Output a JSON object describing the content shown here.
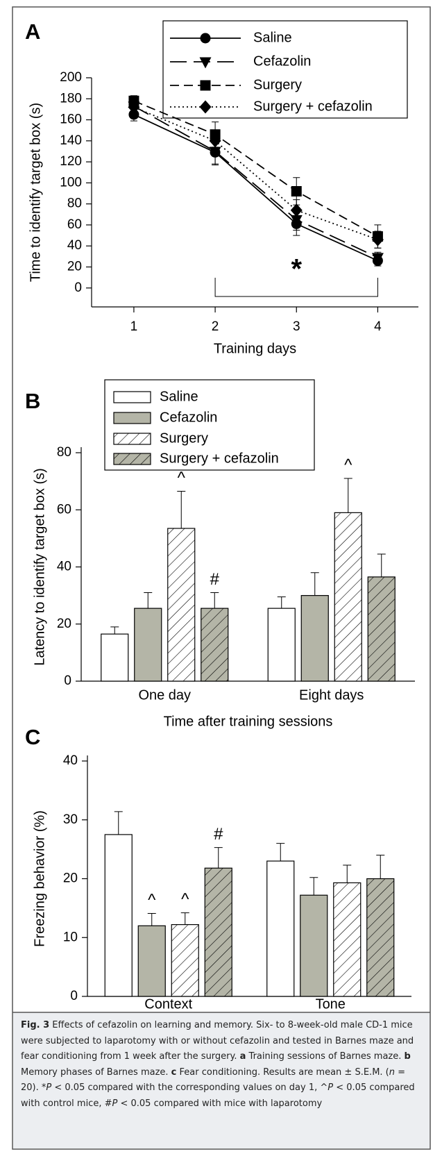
{
  "chart_data": [
    {
      "type": "line",
      "panel": "A",
      "y_label": "Time to identify target box (s)",
      "x_label": "Training days",
      "x": [
        1,
        2,
        3,
        4
      ],
      "xlim": [
        0.48,
        4.5
      ],
      "xticks": [
        1,
        2,
        3,
        4
      ],
      "ylim": [
        -18,
        200
      ],
      "yticks": [
        0,
        20,
        40,
        60,
        80,
        100,
        120,
        140,
        160,
        180,
        200
      ],
      "annotation": "*",
      "series": [
        {
          "name": "Saline",
          "color": "#000000",
          "marker": "circle",
          "dash": "solid",
          "values": [
            165,
            129,
            61,
            26
          ],
          "errors": [
            6,
            12,
            11,
            5
          ]
        },
        {
          "name": "Cefazolin",
          "color": "#000000",
          "marker": "triangle-down",
          "dash": "longdash",
          "values": [
            173,
            130,
            65,
            29
          ],
          "errors": [
            5,
            12,
            10,
            5
          ]
        },
        {
          "name": "Surgery",
          "color": "#000000",
          "marker": "square",
          "dash": "dash",
          "values": [
            178,
            146,
            92,
            49
          ],
          "errors": [
            5,
            12,
            13,
            11
          ]
        },
        {
          "name": "Surgery + cefazolin",
          "color": "#000000",
          "marker": "diamond",
          "dash": "dot",
          "values": [
            172,
            140,
            74,
            46
          ],
          "errors": [
            5,
            10,
            10,
            8
          ]
        }
      ]
    },
    {
      "type": "bar",
      "panel": "B",
      "y_label": "Latency to identify target box (s)",
      "x_label": "Time after training sessions",
      "categories": [
        "One day",
        "Eight days"
      ],
      "ylim": [
        0,
        80
      ],
      "yticks": [
        0,
        20,
        40,
        60,
        80
      ],
      "series": [
        {
          "name": "Saline",
          "color": "#ffffff",
          "hatch": false,
          "values": [
            16.5,
            25.5
          ],
          "errors": [
            2.5,
            4
          ],
          "annotations": [
            null,
            null
          ]
        },
        {
          "name": "Cefazolin",
          "color": "#b4b5a7",
          "hatch": false,
          "values": [
            25.5,
            30
          ],
          "errors": [
            5.5,
            8
          ],
          "annotations": [
            null,
            null
          ]
        },
        {
          "name": "Surgery",
          "color": "#ffffff",
          "hatch": true,
          "values": [
            53.5,
            59
          ],
          "errors": [
            13,
            12
          ],
          "annotations": [
            "^",
            "^"
          ]
        },
        {
          "name": "Surgery + cefazolin",
          "color": "#b4b5a7",
          "hatch": true,
          "values": [
            25.5,
            36.5
          ],
          "errors": [
            5.5,
            8
          ],
          "annotations": [
            "#",
            null
          ]
        }
      ]
    },
    {
      "type": "bar",
      "panel": "C",
      "y_label": "Freezing behavior (%)",
      "categories": [
        "Context",
        "Tone"
      ],
      "ylim": [
        0,
        40
      ],
      "yticks": [
        0,
        10,
        20,
        30,
        40
      ],
      "series": [
        {
          "color": "#ffffff",
          "hatch": false,
          "values": [
            27.5,
            23
          ],
          "errors": [
            3.9,
            3
          ],
          "annotations": [
            null,
            null
          ]
        },
        {
          "color": "#b4b5a7",
          "hatch": false,
          "values": [
            12,
            17.2
          ],
          "errors": [
            2.1,
            3
          ],
          "annotations": [
            "^",
            null
          ]
        },
        {
          "color": "#ffffff",
          "hatch": true,
          "values": [
            12.2,
            19.3
          ],
          "errors": [
            2,
            3
          ],
          "annotations": [
            "^",
            null
          ]
        },
        {
          "color": "#b4b5a7",
          "hatch": true,
          "values": [
            21.8,
            20
          ],
          "errors": [
            3.5,
            4
          ],
          "annotations": [
            "#",
            null
          ]
        }
      ]
    }
  ],
  "caption": [
    {
      "text": "Fig. 3",
      "style": "bold"
    },
    {
      "text": " Effects of cefazolin on learning and memory. Six- to 8-week-old male CD-1 mice were subjected to laparotomy with or without cefazolin and tested in Barnes maze and fear conditioning from 1 week after the surgery. ",
      "style": "normal"
    },
    {
      "text": "a",
      "style": "bold"
    },
    {
      "text": " Training sessions of Barnes maze. ",
      "style": "normal"
    },
    {
      "text": "b",
      "style": "bold"
    },
    {
      "text": " Memory phases of Barnes maze. ",
      "style": "normal"
    },
    {
      "text": "c",
      "style": "bold"
    },
    {
      "text": " Fear conditioning. Results are mean ± S.E.M. (",
      "style": "normal"
    },
    {
      "text": "n",
      "style": "italic"
    },
    {
      "text": " = 20). *",
      "style": "normal"
    },
    {
      "text": "P",
      "style": "italic"
    },
    {
      "text": " < 0.05 compared with the corresponding values on day 1, ^",
      "style": "normal"
    },
    {
      "text": "P",
      "style": "italic"
    },
    {
      "text": " < 0.05 compared with control mice, #",
      "style": "normal"
    },
    {
      "text": "P",
      "style": "italic"
    },
    {
      "text": " < 0.05 compared with mice with laparotomy",
      "style": "normal"
    }
  ]
}
